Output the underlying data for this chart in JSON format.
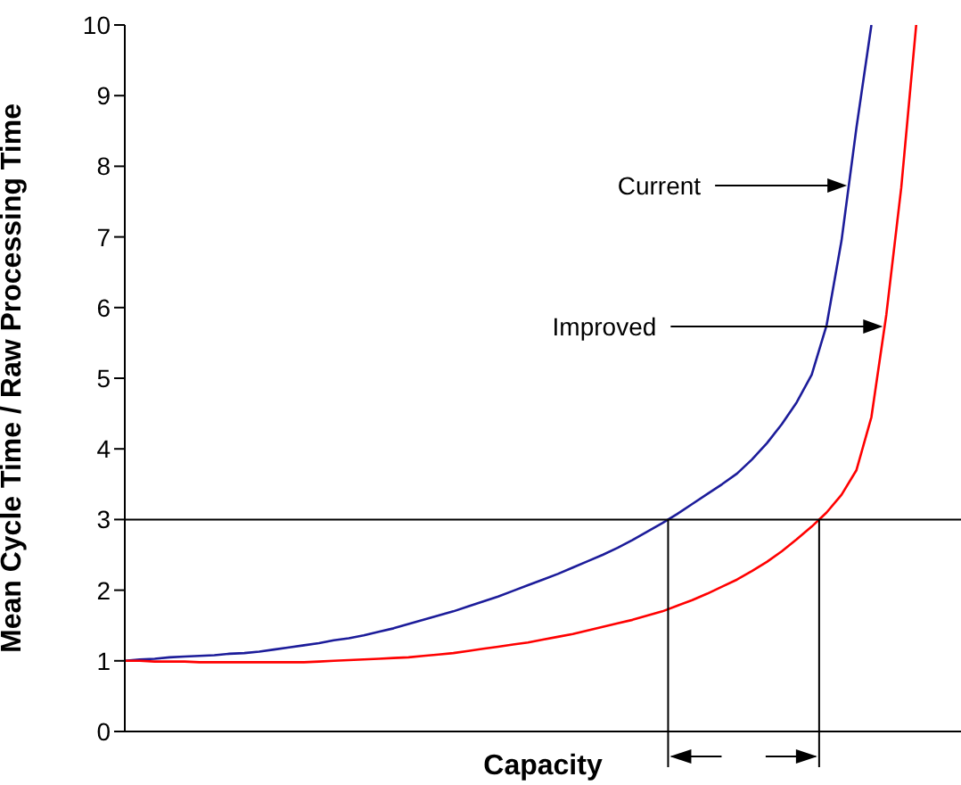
{
  "chart_data": {
    "type": "line",
    "xlabel": "Capacity",
    "ylabel": "Mean Cycle Time / Raw Processing Time",
    "categories": [
      null,
      null,
      null,
      null,
      null,
      null,
      null,
      null,
      null,
      null,
      null,
      null,
      null,
      null,
      null,
      null,
      null,
      null,
      null,
      null,
      null,
      null,
      null,
      null,
      null,
      null,
      null,
      null,
      null,
      null,
      null,
      null,
      null,
      null,
      null,
      null,
      null,
      null,
      null,
      null,
      null,
      null,
      null,
      null,
      null,
      null,
      null,
      null,
      null,
      null,
      null,
      null,
      null,
      null,
      null,
      null,
      null
    ],
    "ylim": [
      0,
      10
    ],
    "yticks": [
      0,
      1,
      2,
      3,
      4,
      5,
      6,
      7,
      8,
      9,
      10
    ],
    "tick_labels": "y",
    "grid": false,
    "marker": "none",
    "line_style": "solid",
    "series": [
      {
        "color": "#1c1c9a",
        "values": [
          1.0,
          1.02,
          1.03,
          1.05,
          1.06,
          1.07,
          1.08,
          1.1,
          1.11,
          1.13,
          1.16,
          1.19,
          1.22,
          1.25,
          1.29,
          1.32,
          1.36,
          1.41,
          1.46,
          1.52,
          1.58,
          1.64,
          1.7,
          1.77,
          1.84,
          1.91,
          1.99,
          2.07,
          2.15,
          2.23,
          2.32,
          2.41,
          2.5,
          2.6,
          2.71,
          2.83,
          2.95,
          3.08,
          3.22,
          3.36,
          3.5,
          3.65,
          3.85,
          4.08,
          4.35,
          4.66,
          5.05,
          5.75,
          6.95,
          8.55,
          10,
          null,
          null,
          null,
          null,
          null,
          null
        ]
      },
      {
        "color": "#ff0000",
        "values": [
          1.0,
          1.0,
          0.99,
          0.99,
          0.99,
          0.98,
          0.98,
          0.98,
          0.98,
          0.98,
          0.98,
          0.98,
          0.98,
          0.99,
          1.0,
          1.01,
          1.02,
          1.03,
          1.04,
          1.05,
          1.07,
          1.09,
          1.11,
          1.14,
          1.17,
          1.2,
          1.23,
          1.26,
          1.3,
          1.34,
          1.38,
          1.43,
          1.48,
          1.53,
          1.58,
          1.64,
          1.7,
          1.78,
          1.86,
          1.95,
          2.05,
          2.15,
          2.27,
          2.4,
          2.55,
          2.72,
          2.9,
          3.1,
          3.35,
          3.7,
          4.45,
          5.9,
          7.7,
          10,
          null,
          null,
          null
        ]
      }
    ],
    "ref_lines": [
      {
        "axis": "y",
        "value": 3,
        "color": "#000000"
      }
    ],
    "annotations": [
      "Current",
      "Improved"
    ]
  }
}
